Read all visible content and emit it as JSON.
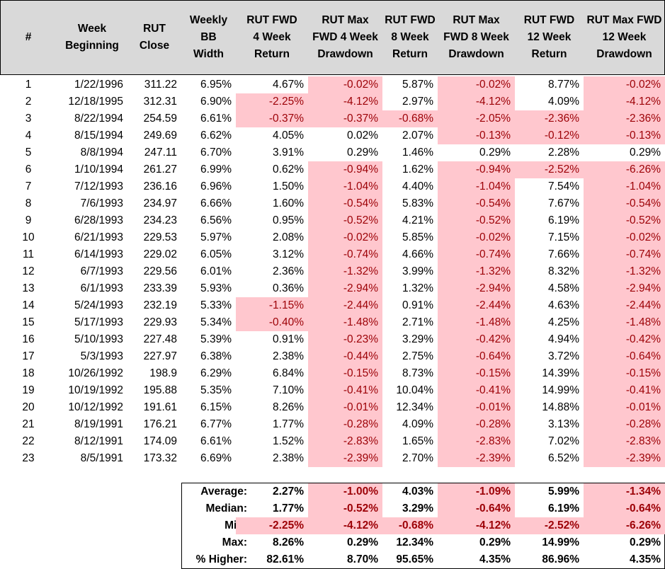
{
  "colors": {
    "header_bg": "#d9d9d9",
    "negative_fill": "#ffc7ce",
    "negative_text": "#9c0006"
  },
  "headers": [
    "#",
    "Week\nBeginning",
    "RUT\nClose",
    "Weekly BB\nWidth",
    "RUT FWD\n4 Week\nReturn",
    "RUT Max\nFWD 4 Week\nDrawdown",
    "RUT FWD\n8 Week\nReturn",
    "RUT Max\nFWD 8 Week\nDrawdown",
    "RUT FWD\n12 Week\nReturn",
    "RUT Max FWD\n12 Week\nDrawdown"
  ],
  "rows": [
    [
      "1",
      "1/22/1996",
      "311.22",
      "6.95%",
      "4.67%",
      "-0.02%",
      "5.87%",
      "-0.02%",
      "8.77%",
      "-0.02%"
    ],
    [
      "2",
      "12/18/1995",
      "312.31",
      "6.90%",
      "-2.25%",
      "-4.12%",
      "2.97%",
      "-4.12%",
      "4.09%",
      "-4.12%"
    ],
    [
      "3",
      "8/22/1994",
      "254.59",
      "6.61%",
      "-0.37%",
      "-0.37%",
      "-0.68%",
      "-2.05%",
      "-2.36%",
      "-2.36%"
    ],
    [
      "4",
      "8/15/1994",
      "249.69",
      "6.62%",
      "4.05%",
      "0.02%",
      "2.07%",
      "-0.13%",
      "-0.12%",
      "-0.13%"
    ],
    [
      "5",
      "8/8/1994",
      "247.11",
      "6.70%",
      "3.91%",
      "0.29%",
      "1.46%",
      "0.29%",
      "2.28%",
      "0.29%"
    ],
    [
      "6",
      "1/10/1994",
      "261.27",
      "6.99%",
      "0.62%",
      "-0.94%",
      "1.62%",
      "-0.94%",
      "-2.52%",
      "-6.26%"
    ],
    [
      "7",
      "7/12/1993",
      "236.16",
      "6.96%",
      "1.50%",
      "-1.04%",
      "4.40%",
      "-1.04%",
      "7.54%",
      "-1.04%"
    ],
    [
      "8",
      "7/6/1993",
      "234.97",
      "6.66%",
      "1.60%",
      "-0.54%",
      "5.83%",
      "-0.54%",
      "7.67%",
      "-0.54%"
    ],
    [
      "9",
      "6/28/1993",
      "234.23",
      "6.56%",
      "0.95%",
      "-0.52%",
      "4.21%",
      "-0.52%",
      "6.19%",
      "-0.52%"
    ],
    [
      "10",
      "6/21/1993",
      "229.53",
      "5.97%",
      "2.08%",
      "-0.02%",
      "5.85%",
      "-0.02%",
      "7.15%",
      "-0.02%"
    ],
    [
      "11",
      "6/14/1993",
      "229.02",
      "6.05%",
      "3.12%",
      "-0.74%",
      "4.66%",
      "-0.74%",
      "7.66%",
      "-0.74%"
    ],
    [
      "12",
      "6/7/1993",
      "229.56",
      "6.01%",
      "2.36%",
      "-1.32%",
      "3.99%",
      "-1.32%",
      "8.32%",
      "-1.32%"
    ],
    [
      "13",
      "6/1/1993",
      "233.39",
      "5.93%",
      "0.36%",
      "-2.94%",
      "1.32%",
      "-2.94%",
      "4.58%",
      "-2.94%"
    ],
    [
      "14",
      "5/24/1993",
      "232.19",
      "5.33%",
      "-1.15%",
      "-2.44%",
      "0.91%",
      "-2.44%",
      "4.63%",
      "-2.44%"
    ],
    [
      "15",
      "5/17/1993",
      "229.93",
      "5.34%",
      "-0.40%",
      "-1.48%",
      "2.71%",
      "-1.48%",
      "4.25%",
      "-1.48%"
    ],
    [
      "16",
      "5/10/1993",
      "227.48",
      "5.39%",
      "0.91%",
      "-0.23%",
      "3.29%",
      "-0.42%",
      "4.94%",
      "-0.42%"
    ],
    [
      "17",
      "5/3/1993",
      "227.97",
      "6.38%",
      "2.38%",
      "-0.44%",
      "2.75%",
      "-0.64%",
      "3.72%",
      "-0.64%"
    ],
    [
      "18",
      "10/26/1992",
      "198.9",
      "6.29%",
      "6.84%",
      "-0.15%",
      "8.73%",
      "-0.15%",
      "14.39%",
      "-0.15%"
    ],
    [
      "19",
      "10/19/1992",
      "195.88",
      "5.35%",
      "7.10%",
      "-0.41%",
      "10.04%",
      "-0.41%",
      "14.99%",
      "-0.41%"
    ],
    [
      "20",
      "10/12/1992",
      "191.61",
      "6.15%",
      "8.26%",
      "-0.01%",
      "12.34%",
      "-0.01%",
      "14.88%",
      "-0.01%"
    ],
    [
      "21",
      "8/19/1991",
      "176.21",
      "6.77%",
      "1.77%",
      "-0.28%",
      "4.09%",
      "-0.28%",
      "3.13%",
      "-0.28%"
    ],
    [
      "22",
      "8/12/1991",
      "174.09",
      "6.61%",
      "1.52%",
      "-2.83%",
      "1.65%",
      "-2.83%",
      "7.02%",
      "-2.83%"
    ],
    [
      "23",
      "8/5/1991",
      "173.32",
      "6.69%",
      "2.38%",
      "-2.39%",
      "2.70%",
      "-2.39%",
      "6.52%",
      "-2.39%"
    ]
  ],
  "summary": [
    {
      "label": "Average:",
      "values": [
        "2.27%",
        "-1.00%",
        "4.03%",
        "-1.09%",
        "5.99%",
        "-1.34%"
      ]
    },
    {
      "label": "Median:",
      "values": [
        "1.77%",
        "-0.52%",
        "3.29%",
        "-0.64%",
        "6.19%",
        "-0.64%"
      ]
    },
    {
      "label": "Min:",
      "values": [
        "-2.25%",
        "-4.12%",
        "-0.68%",
        "-4.12%",
        "-2.52%",
        "-6.26%"
      ]
    },
    {
      "label": "Max:",
      "values": [
        "8.26%",
        "0.29%",
        "12.34%",
        "0.29%",
        "14.99%",
        "0.29%"
      ]
    },
    {
      "label": "% Higher:",
      "values": [
        "82.61%",
        "8.70%",
        "95.65%",
        "4.35%",
        "86.96%",
        "4.35%"
      ]
    }
  ]
}
